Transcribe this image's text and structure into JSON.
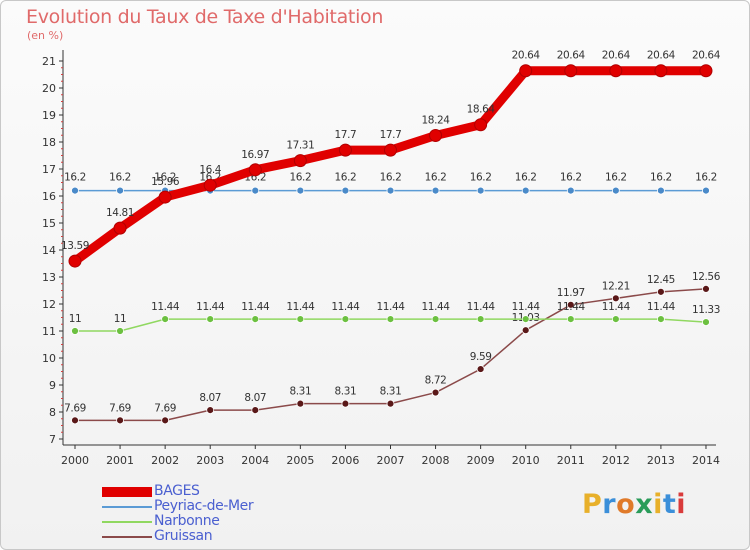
{
  "header": {
    "title": "Evolution du Taux de Taxe d'Habitation",
    "unit": "(en %)"
  },
  "logo": {
    "text": "Proxiti",
    "letter_colors": [
      "#e8b02a",
      "#3b8fd9",
      "#e07a2a",
      "#2a9c5a",
      "#e8b02a",
      "#3b8fd9",
      "#d93b3b"
    ]
  },
  "chart_data": {
    "type": "line",
    "title": "Evolution du Taux de Taxe d'Habitation",
    "ylabel": "(en %)",
    "xlabel": "",
    "x": [
      2000,
      2001,
      2002,
      2003,
      2004,
      2005,
      2006,
      2007,
      2008,
      2009,
      2010,
      2011,
      2012,
      2013,
      2014
    ],
    "ylim": [
      7,
      21
    ],
    "yticks": [
      7,
      8,
      9,
      10,
      11,
      12,
      13,
      14,
      15,
      16,
      17,
      18,
      19,
      20,
      21
    ],
    "grid": false,
    "legend_position": "bottom-left",
    "series": [
      {
        "name": "BAGES",
        "color": "#e00000",
        "marker_color": "#e00000",
        "values": [
          13.59,
          14.81,
          15.96,
          16.4,
          16.97,
          17.31,
          17.7,
          17.7,
          18.24,
          18.64,
          20.64,
          20.64,
          20.64,
          20.64,
          20.64
        ]
      },
      {
        "name": "Peyriac-de-Mer",
        "color": "#5b9bd5",
        "marker_color": "#4a8ac9",
        "values": [
          16.2,
          16.2,
          16.2,
          16.2,
          16.2,
          16.2,
          16.2,
          16.2,
          16.2,
          16.2,
          16.2,
          16.2,
          16.2,
          16.2,
          16.2
        ]
      },
      {
        "name": "Narbonne",
        "color": "#90d860",
        "marker_color": "#6cc040",
        "values": [
          11,
          11,
          11.44,
          11.44,
          11.44,
          11.44,
          11.44,
          11.44,
          11.44,
          11.44,
          11.44,
          11.44,
          11.44,
          11.44,
          11.33
        ]
      },
      {
        "name": "Gruissan",
        "color": "#8b4a4a",
        "marker_color": "#5a1818",
        "values": [
          7.69,
          7.69,
          7.69,
          8.07,
          8.07,
          8.31,
          8.31,
          8.31,
          8.72,
          9.59,
          11.03,
          11.97,
          12.21,
          12.45,
          12.56
        ]
      }
    ]
  }
}
